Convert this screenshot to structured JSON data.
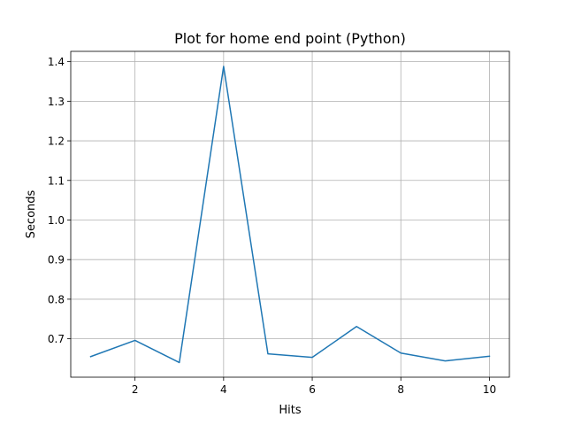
{
  "chart_data": {
    "type": "line",
    "title": "Plot for home end point (Python)",
    "xlabel": "Hits",
    "ylabel": "Seconds",
    "xlim": [
      0.55,
      10.45
    ],
    "ylim": [
      0.603,
      1.426
    ],
    "xticks": [
      2,
      4,
      6,
      8,
      10
    ],
    "yticks": [
      0.7,
      0.8,
      0.9,
      1.0,
      1.1,
      1.2,
      1.3,
      1.4
    ],
    "xtick_labels": [
      "2",
      "4",
      "6",
      "8",
      "10"
    ],
    "ytick_labels": [
      "0.7",
      "0.8",
      "0.9",
      "1.0",
      "1.1",
      "1.2",
      "1.3",
      "1.4"
    ],
    "grid": true,
    "series": [
      {
        "color": "#1f77b4",
        "x": [
          1,
          2,
          3,
          4,
          5,
          6,
          7,
          8,
          9,
          10
        ],
        "y": [
          0.655,
          0.696,
          0.64,
          1.388,
          0.662,
          0.653,
          0.731,
          0.664,
          0.644,
          0.656
        ]
      }
    ]
  }
}
